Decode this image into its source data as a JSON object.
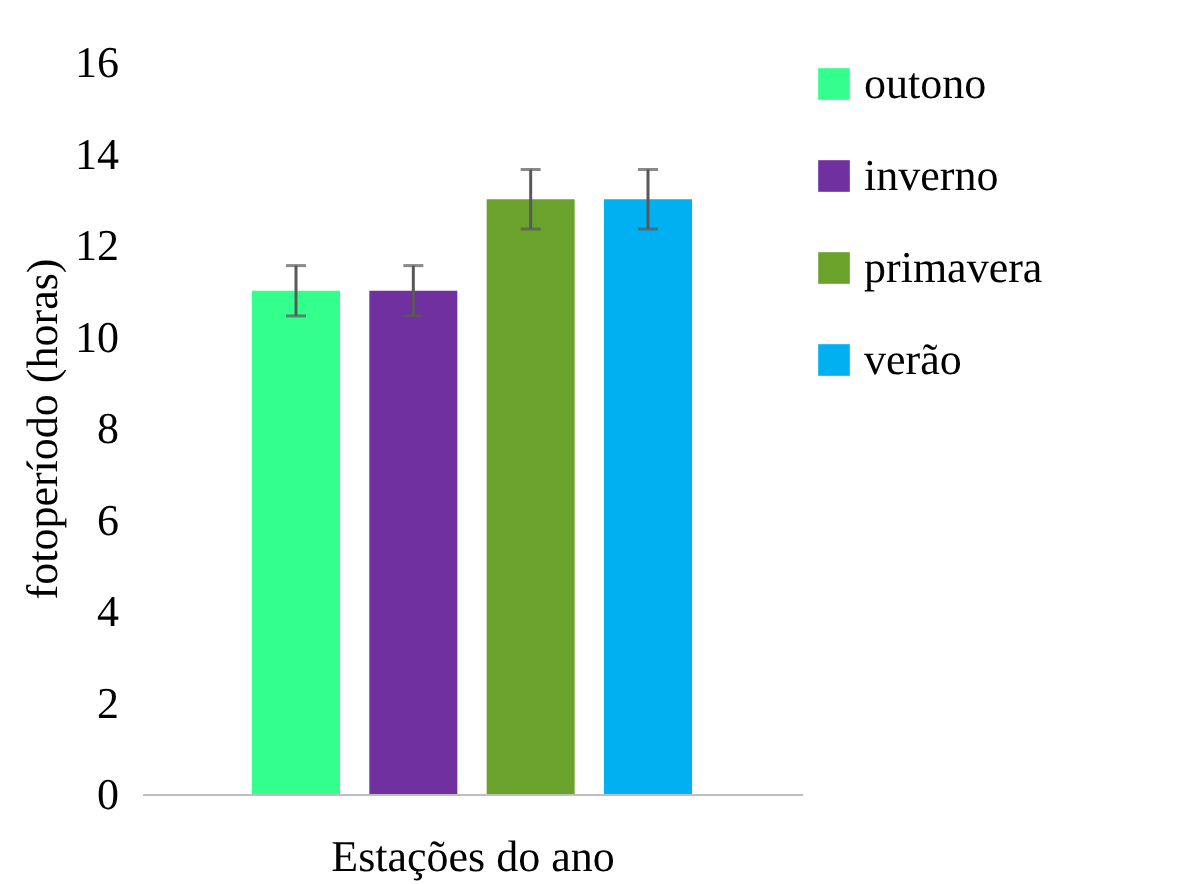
{
  "chart_data": {
    "type": "bar",
    "xlabel": "Estações do ano",
    "ylabel": "fotoperíodo (horas)",
    "categories": [
      null
    ],
    "series": [
      {
        "name": "outono",
        "color": "#33ff8c",
        "values": [
          11
        ],
        "errors": [
          0.55
        ]
      },
      {
        "name": "inverno",
        "color": "#7030a0",
        "values": [
          11
        ],
        "errors": [
          0.55
        ]
      },
      {
        "name": "primavera",
        "color": "#6aa22c",
        "values": [
          13
        ],
        "errors": [
          0.65
        ]
      },
      {
        "name": "verão",
        "color": "#00b0f0",
        "values": [
          13
        ],
        "errors": [
          0.65
        ]
      }
    ],
    "ylim": [
      0,
      16
    ],
    "yticks": [
      0,
      2,
      4,
      6,
      8,
      10,
      12,
      14,
      16
    ],
    "grid": false,
    "legend": "right"
  }
}
